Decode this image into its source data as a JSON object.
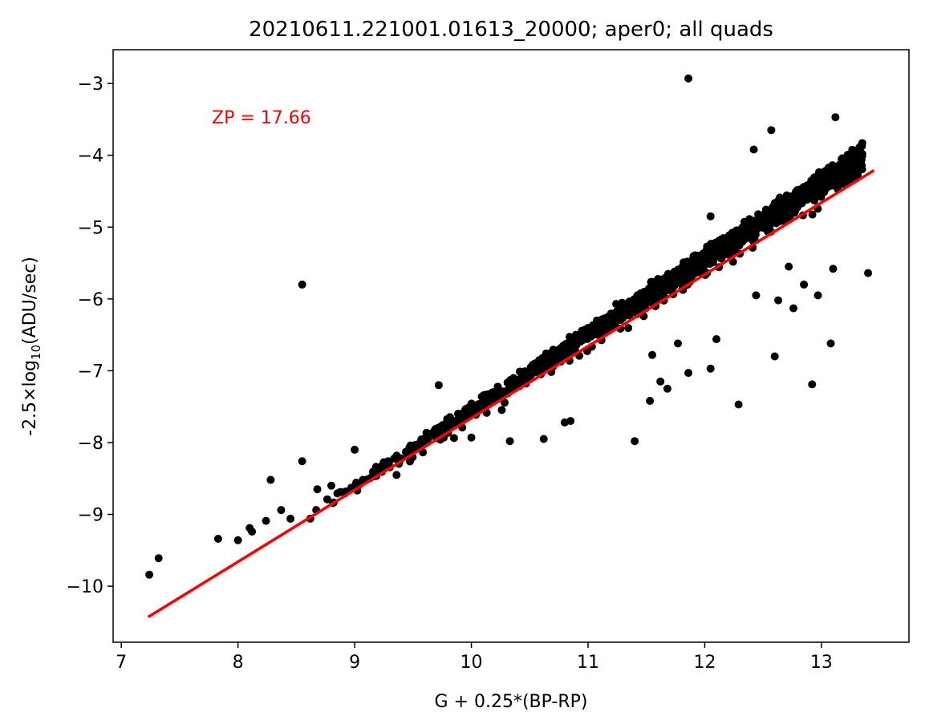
{
  "chart_data": {
    "type": "scatter",
    "title": "20210611.221001.01613_20000; aper0; all quads",
    "xlabel": "G + 0.25*(BP-RP)",
    "ylabel": {
      "pre": "-2.5×log",
      "sub": "10",
      "post": "(ADU/sec)"
    },
    "xlim": [
      6.93,
      13.75
    ],
    "ylim": [
      -10.78,
      -2.53
    ],
    "x_ticks": [
      7,
      8,
      9,
      10,
      11,
      12,
      13
    ],
    "y_ticks": [
      -3,
      -4,
      -5,
      -6,
      -7,
      -8,
      -9,
      -10
    ],
    "x_tick_labels": [
      "7",
      "8",
      "9",
      "10",
      "11",
      "12",
      "13"
    ],
    "y_tick_labels": [
      "−3",
      "−4",
      "−5",
      "−6",
      "−7",
      "−8",
      "−9",
      "−10"
    ],
    "grid": false,
    "annotation": {
      "text": "ZP = 17.66",
      "color": "#ff0000"
    },
    "fit_line": {
      "color": "#ff0000",
      "x": [
        7.23,
        13.45
      ],
      "y": [
        -10.43,
        -4.21
      ]
    },
    "marker_color": "#000000",
    "series": [
      {
        "points_outliers": [
          [
            7.24,
            -9.84
          ],
          [
            7.32,
            -9.61
          ],
          [
            7.83,
            -9.34
          ],
          [
            8.0,
            -9.36
          ],
          [
            8.1,
            -9.19
          ],
          [
            8.12,
            -9.24
          ],
          [
            8.24,
            -9.09
          ],
          [
            8.28,
            -8.52
          ],
          [
            8.37,
            -8.94
          ],
          [
            8.45,
            -9.06
          ],
          [
            8.55,
            -8.26
          ],
          [
            8.55,
            -5.8
          ],
          [
            8.62,
            -9.06
          ],
          [
            8.68,
            -8.65
          ],
          [
            8.8,
            -8.6
          ],
          [
            9.0,
            -8.1
          ],
          [
            9.72,
            -7.2
          ],
          [
            10.0,
            -7.93
          ],
          [
            10.33,
            -7.98
          ],
          [
            10.62,
            -7.95
          ],
          [
            11.4,
            -7.98
          ],
          [
            11.53,
            -7.42
          ],
          [
            11.62,
            -7.15
          ],
          [
            11.68,
            -7.25
          ],
          [
            11.77,
            -6.62
          ],
          [
            11.86,
            -7.03
          ],
          [
            11.86,
            -2.93
          ],
          [
            12.05,
            -6.97
          ],
          [
            12.1,
            -6.56
          ],
          [
            12.05,
            -4.85
          ],
          [
            12.29,
            -7.47
          ],
          [
            12.42,
            -3.92
          ],
          [
            12.57,
            -3.65
          ],
          [
            12.6,
            -6.8
          ],
          [
            12.63,
            -6.02
          ],
          [
            12.92,
            -7.19
          ],
          [
            12.97,
            -5.95
          ],
          [
            13.08,
            -6.62
          ],
          [
            13.12,
            -3.47
          ],
          [
            13.35,
            -3.83
          ],
          [
            13.4,
            -5.64
          ],
          [
            12.44,
            -5.95
          ],
          [
            12.76,
            -6.13
          ],
          [
            12.85,
            -5.8
          ],
          [
            12.72,
            -5.55
          ],
          [
            10.8,
            -7.72
          ],
          [
            10.85,
            -7.7
          ],
          [
            11.55,
            -6.78
          ],
          [
            11.82,
            -5.68
          ],
          [
            13.1,
            -5.58
          ]
        ]
      }
    ]
  }
}
